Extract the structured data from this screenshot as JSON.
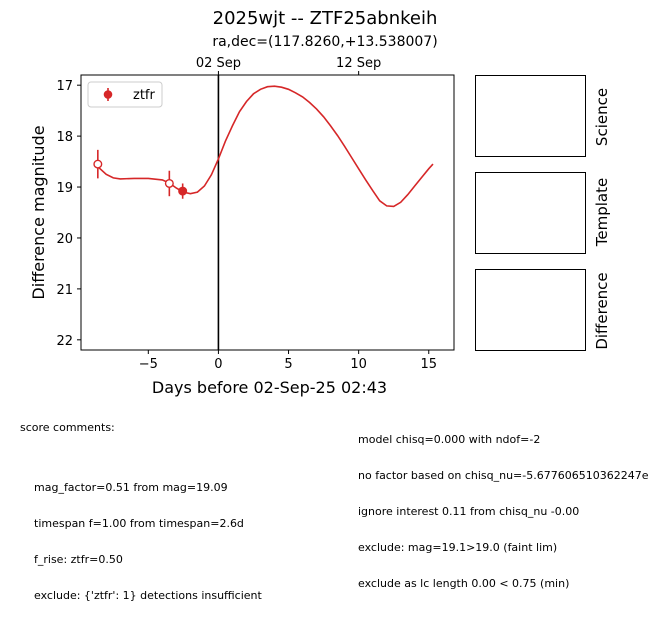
{
  "title": "2025wjt -- ZTF25abnkeih",
  "subtitle": "ra,dec=(117.8260,+13.538007)",
  "chart_data": {
    "type": "scatter",
    "xlabel": "Days before 02-Sep-25 02:43",
    "ylabel": "Difference magnitude",
    "xlim": [
      -9.8,
      16.8
    ],
    "ylim": [
      22.2,
      16.8
    ],
    "x_ticks": [
      -5,
      0,
      5,
      10,
      15
    ],
    "y_ticks": [
      17,
      18,
      19,
      20,
      21,
      22
    ],
    "top_ticks": [
      {
        "x": 0,
        "label": "02 Sep"
      },
      {
        "x": 10,
        "label": "12 Sep"
      }
    ],
    "vline_x": 0,
    "legend": {
      "location": "top-left",
      "entries": [
        "ztfr"
      ]
    },
    "points": [
      {
        "series": "ztfr",
        "x": -8.6,
        "y": 18.55,
        "err": 0.28,
        "filled": false
      },
      {
        "series": "ztfr",
        "x": -3.5,
        "y": 18.93,
        "err": 0.25,
        "filled": false
      },
      {
        "series": "ztfr",
        "x": -2.55,
        "y": 19.08,
        "err": 0.15,
        "filled": true
      }
    ],
    "model_curve": {
      "x": [
        -8.6,
        -8.0,
        -7.5,
        -7.0,
        -6.0,
        -5.0,
        -4.0,
        -3.5,
        -3.0,
        -2.5,
        -2.0,
        -1.5,
        -1.0,
        -0.5,
        0,
        0.5,
        1.0,
        1.5,
        2.0,
        2.5,
        3.0,
        3.5,
        4.0,
        4.5,
        5.0,
        5.5,
        6.0,
        6.5,
        7.0,
        7.5,
        8.0,
        8.5,
        9.0,
        9.5,
        10.0,
        10.5,
        11.0,
        11.5,
        12.0,
        12.5,
        13.0,
        13.5,
        14.0,
        14.5,
        15.0,
        15.3
      ],
      "y": [
        18.6,
        18.75,
        18.82,
        18.84,
        18.83,
        18.83,
        18.86,
        18.92,
        19.02,
        19.1,
        19.13,
        19.1,
        18.98,
        18.76,
        18.45,
        18.1,
        17.8,
        17.52,
        17.32,
        17.17,
        17.08,
        17.03,
        17.02,
        17.04,
        17.08,
        17.15,
        17.23,
        17.34,
        17.47,
        17.62,
        17.8,
        17.99,
        18.2,
        18.42,
        18.64,
        18.86,
        19.07,
        19.27,
        19.37,
        19.38,
        19.3,
        19.15,
        18.98,
        18.81,
        18.64,
        18.55
      ]
    }
  },
  "panels": {
    "science": "Science",
    "template": "Template",
    "difference": "Difference"
  },
  "comments_left": {
    "header": "score comments:",
    "lines": [
      "mag_factor=0.51 from mag=19.09",
      "timespan f=1.00 from timespan=2.6d",
      "f_rise: ztfr=0.50",
      "exclude: {'ztfr': 1} detections insufficient"
    ]
  },
  "comments_right": {
    "lines": [
      "model chisq=0.000 with ndof=-2",
      "no factor based on chisq_nu=-5.677606510362247e",
      "ignore interest 0.11 from chisq_nu -0.00",
      "exclude: mag=19.1>19.0 (faint lim)",
      "exclude as lc length 0.00 < 0.75 (min)"
    ]
  },
  "colors": {
    "ztfr": "#d62728",
    "vline": "#000000"
  }
}
